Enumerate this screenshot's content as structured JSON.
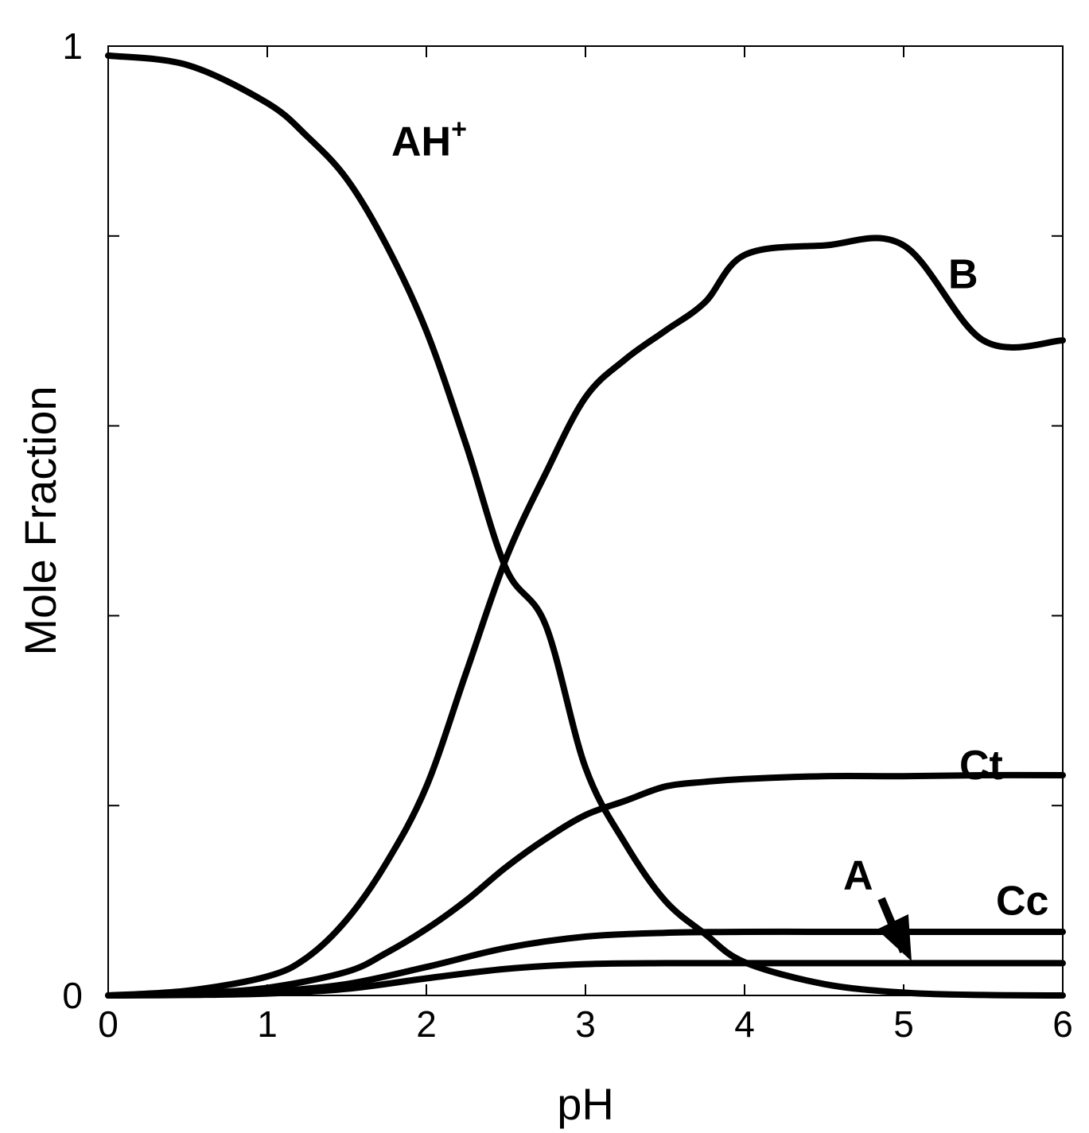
{
  "chart_data": {
    "type": "line",
    "xlabel": "pH",
    "ylabel": "Mole Fraction",
    "xlim": [
      0,
      6
    ],
    "ylim": [
      0,
      1
    ],
    "x_ticks": [
      0,
      1,
      2,
      3,
      4,
      5,
      6
    ],
    "y_tick_labels": [
      {
        "value": 0,
        "label": "0"
      },
      {
        "value": 1,
        "label": "1"
      }
    ],
    "y_minor_ticks": [
      0.2,
      0.4,
      0.6,
      0.8
    ],
    "grid": false,
    "line_color": "#000000",
    "series": [
      {
        "name": "AH",
        "sup": "+",
        "x": [
          0,
          0.5,
          1,
          1.25,
          1.5,
          1.75,
          2,
          2.25,
          2.5,
          2.75,
          3,
          3.25,
          3.5,
          3.75,
          4,
          4.5,
          5,
          5.5,
          6
        ],
        "y": [
          0.99,
          0.98,
          0.94,
          0.905,
          0.86,
          0.79,
          0.7,
          0.58,
          0.45,
          0.39,
          0.24,
          0.16,
          0.1,
          0.065,
          0.035,
          0.012,
          0.003,
          0.0005,
          0.0
        ]
      },
      {
        "name": "B",
        "x": [
          0,
          0.5,
          1,
          1.25,
          1.5,
          1.75,
          2,
          2.25,
          2.5,
          2.75,
          3,
          3.25,
          3.5,
          3.75,
          4,
          4.5,
          5,
          5.5,
          6
        ],
        "y": [
          0.0,
          0.005,
          0.02,
          0.04,
          0.08,
          0.14,
          0.22,
          0.34,
          0.46,
          0.55,
          0.63,
          0.67,
          0.7,
          0.73,
          0.78,
          0.79,
          0.79,
          0.69,
          0.69
        ]
      },
      {
        "name": "Ct",
        "x": [
          0,
          0.5,
          1,
          1.5,
          1.75,
          2,
          2.25,
          2.5,
          2.75,
          3,
          3.25,
          3.5,
          3.75,
          4,
          4.5,
          5,
          5.5,
          6
        ],
        "y": [
          0.0,
          0.002,
          0.008,
          0.025,
          0.045,
          0.07,
          0.1,
          0.135,
          0.165,
          0.19,
          0.205,
          0.22,
          0.225,
          0.228,
          0.231,
          0.231,
          0.232,
          0.232
        ]
      },
      {
        "name": "Cc",
        "x": [
          0,
          0.5,
          1,
          1.5,
          2,
          2.5,
          3,
          3.5,
          4,
          4.5,
          5,
          5.5,
          6
        ],
        "y": [
          0.0,
          0.001,
          0.004,
          0.012,
          0.03,
          0.05,
          0.062,
          0.066,
          0.067,
          0.067,
          0.067,
          0.067,
          0.067
        ]
      },
      {
        "name": "A",
        "x": [
          0,
          0.5,
          1,
          1.5,
          2,
          2.5,
          3,
          3.5,
          4,
          4.5,
          5,
          5.5,
          6
        ],
        "y": [
          0.0,
          0.0005,
          0.002,
          0.007,
          0.018,
          0.028,
          0.033,
          0.034,
          0.034,
          0.034,
          0.034,
          0.034,
          0.034
        ]
      }
    ],
    "annotations": [
      {
        "text": "AH",
        "sup": "+",
        "x": 1.78,
        "y": 0.885
      },
      {
        "text": "B",
        "x": 5.28,
        "y": 0.745
      },
      {
        "text": "Ct",
        "x": 5.35,
        "y": 0.228
      },
      {
        "text": "Cc",
        "x": 5.58,
        "y": 0.085
      },
      {
        "text": "A",
        "x": 4.62,
        "y": 0.112,
        "arrow_to": [
          5.05,
          0.036
        ]
      }
    ]
  }
}
